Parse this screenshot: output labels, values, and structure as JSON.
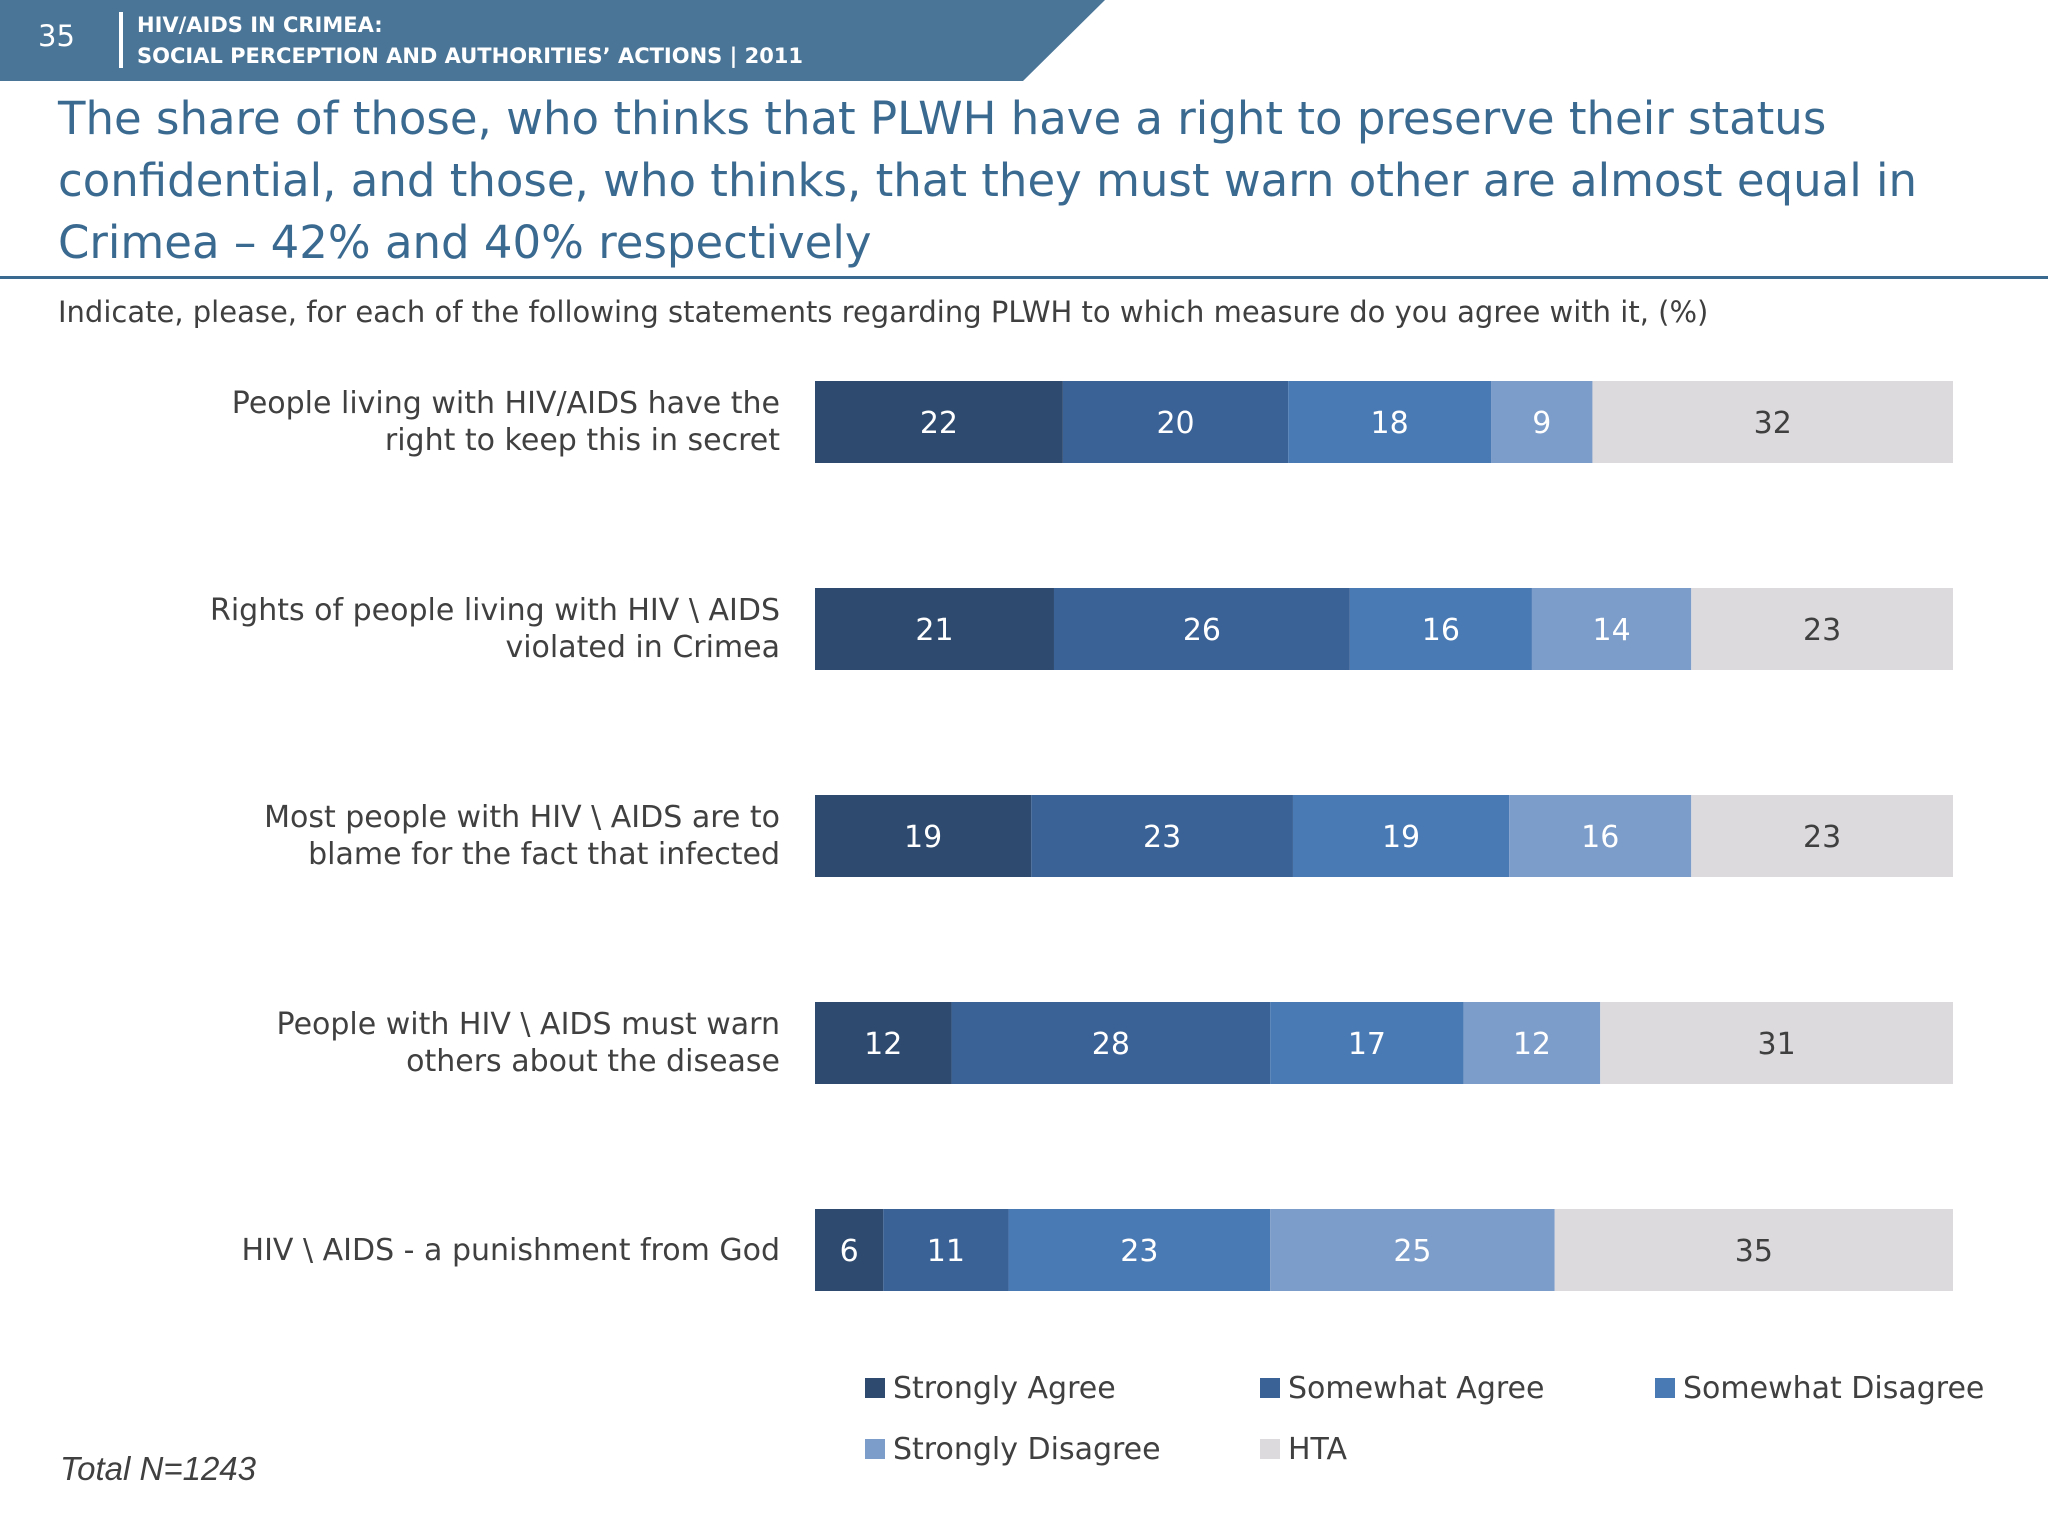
{
  "header": {
    "page_number": "35",
    "line1": "HIV/AIDS IN CRIMEA:",
    "line2": "SOCIAL PERCEPTION AND AUTHORITIES’ ACTIONS  |  2011"
  },
  "title": "The share of those, who thinks that PLWH have a right to preserve their status confidential, and those, who thinks, that they must warn other are almost equal in Crimea – 42% and 40% respectively",
  "question": "Indicate, please, for each of the following statements regarding PLWH to which measure do you agree with it, (%)",
  "footer": {
    "total": "Total N=1243"
  },
  "colors": {
    "header_band": "#4a7597",
    "title": "#3b6a91",
    "strongly_agree": "#2e4a6e",
    "somewhat_agree": "#3b6296",
    "somewhat_disagree": "#4a7ab4",
    "strongly_disagree": "#7c9cc9",
    "hta": "#dcdadd"
  },
  "chart_data": {
    "type": "bar",
    "orientation": "horizontal",
    "stacked": true,
    "categories": [
      [
        "People living with HIV/AIDS have the",
        "right to keep this in secret"
      ],
      [
        "Rights of people living with HIV \\ AIDS",
        "violated in Crimea"
      ],
      [
        "Most people with HIV \\ AIDS are to",
        "blame for the fact that infected"
      ],
      [
        "People with HIV \\ AIDS must warn",
        "others about the disease"
      ],
      [
        "HIV \\ AIDS - a punishment from God"
      ]
    ],
    "series": [
      {
        "name": "Strongly Agree",
        "color": "#2e4a6e",
        "text_color": "#ffffff",
        "values": [
          22,
          21,
          19,
          12,
          6
        ]
      },
      {
        "name": "Somewhat Agree",
        "color": "#3b6296",
        "text_color": "#ffffff",
        "values": [
          20,
          26,
          23,
          28,
          11
        ]
      },
      {
        "name": "Somewhat Disagree",
        "color": "#4a7ab4",
        "text_color": "#ffffff",
        "values": [
          18,
          16,
          19,
          17,
          23
        ]
      },
      {
        "name": "Strongly Disagree",
        "color": "#7c9cc9",
        "text_color": "#ffffff",
        "values": [
          9,
          14,
          16,
          12,
          25
        ]
      },
      {
        "name": "HTA",
        "color": "#dcdadd",
        "text_color": "#3f3f3f",
        "values": [
          32,
          23,
          23,
          31,
          35
        ]
      }
    ],
    "data_labels": true,
    "grid": false,
    "legend_position": "bottom-right"
  }
}
